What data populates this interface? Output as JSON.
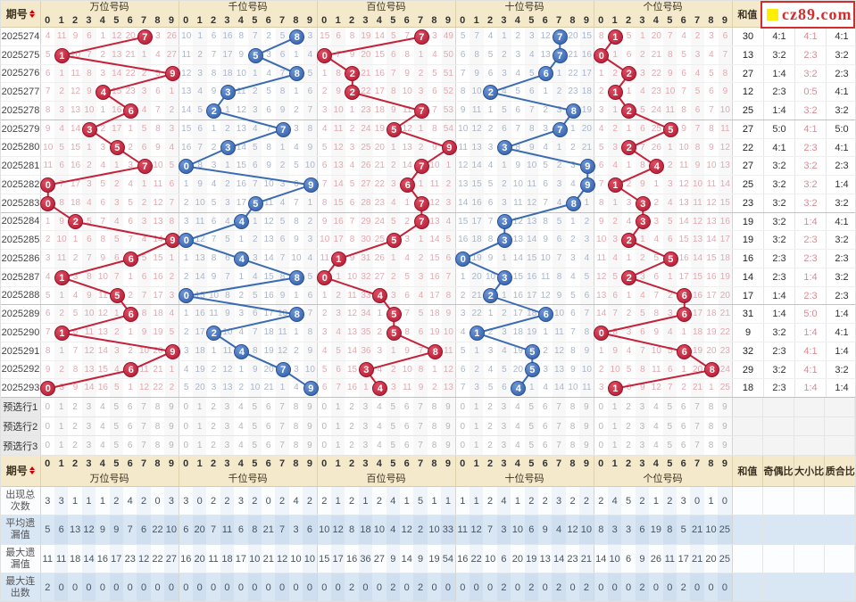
{
  "header": {
    "period_label": "期号",
    "digit_headers": [
      "0",
      "1",
      "2",
      "3",
      "4",
      "5",
      "6",
      "7",
      "8",
      "9"
    ],
    "groups": [
      "万位号码",
      "千位号码",
      "百位号码",
      "十位号码",
      "个位号码"
    ],
    "sum_label": "和值",
    "ratio_labels": [
      "奇偶比",
      "大小比",
      "质合比"
    ],
    "logo_text": "cz89.com"
  },
  "colors": {
    "red_ball": "#b01730",
    "blue_ball": "#2d5ba8",
    "red_line": "#c5223a",
    "blue_line": "#3a6cb4",
    "pink_miss_text": "#e2a9b0",
    "blue_miss_text": "#a9b6cc",
    "header_bg": "#f4e9ca",
    "stats_row_bg": "#d9e7f5",
    "logo_red": "#d42c2c",
    "logo_yellow": "#ffee00"
  },
  "preselect_rows": [
    {
      "label": "预选行1",
      "digits": [
        "0",
        "1",
        "2",
        "3",
        "4",
        "5",
        "6",
        "7",
        "8",
        "9"
      ]
    },
    {
      "label": "预选行2",
      "digits": [
        "0",
        "1",
        "2",
        "3",
        "4",
        "5",
        "6",
        "7",
        "8",
        "9"
      ]
    },
    {
      "label": "预选行3",
      "digits": [
        "0",
        "1",
        "2",
        "3",
        "4",
        "5",
        "6",
        "7",
        "8",
        "9"
      ]
    }
  ],
  "chart_data": {
    "type": "line",
    "description": "5-digit lottery omission trend chart: per position the drawn digit is circled, other cells show periods-since-last-appearance (computed from first_row_miss seeds by +1 per row, reset to 1 after a draw).",
    "digit_axis": [
      "0",
      "1",
      "2",
      "3",
      "4",
      "5",
      "6",
      "7",
      "8",
      "9"
    ],
    "periods": [
      "2025274",
      "2025275",
      "2025276",
      "2025277",
      "2025278",
      "2025279",
      "2025280",
      "2025281",
      "2025282",
      "2025283",
      "2025284",
      "2025285",
      "2025286",
      "2025287",
      "2025288",
      "2025289",
      "2025290",
      "2025291",
      "2025292",
      "2025293"
    ],
    "series": [
      {
        "name": "万位号码",
        "color": "red",
        "drawn": [
          7,
          1,
          9,
          4,
          6,
          3,
          5,
          7,
          0,
          0,
          2,
          9,
          6,
          1,
          5,
          6,
          1,
          9,
          6,
          0
        ],
        "first_row_miss": [
          4,
          11,
          9,
          6,
          1,
          12,
          20,
          0,
          3,
          26
        ]
      },
      {
        "name": "千位号码",
        "color": "blue",
        "drawn": [
          8,
          5,
          8,
          3,
          2,
          7,
          3,
          0,
          9,
          5,
          4,
          0,
          4,
          8,
          0,
          8,
          2,
          4,
          7,
          9
        ],
        "first_row_miss": [
          10,
          1,
          6,
          16,
          8,
          7,
          2,
          5,
          0,
          3
        ]
      },
      {
        "name": "百位号码",
        "color": "red",
        "drawn": [
          7,
          0,
          2,
          2,
          7,
          5,
          9,
          7,
          6,
          7,
          7,
          5,
          1,
          0,
          4,
          5,
          5,
          8,
          3,
          4
        ],
        "first_row_miss": [
          15,
          6,
          8,
          19,
          14,
          5,
          7,
          0,
          3,
          49
        ]
      },
      {
        "name": "十位号码",
        "color": "blue",
        "drawn": [
          7,
          7,
          6,
          2,
          8,
          7,
          3,
          9,
          9,
          8,
          3,
          3,
          0,
          3,
          2,
          6,
          1,
          5,
          5,
          4
        ],
        "first_row_miss": [
          5,
          7,
          4,
          1,
          2,
          3,
          12,
          0,
          20,
          15
        ]
      },
      {
        "name": "个位号码",
        "color": "red",
        "drawn": [
          1,
          0,
          2,
          1,
          2,
          5,
          2,
          4,
          1,
          3,
          3,
          2,
          5,
          2,
          6,
          6,
          0,
          6,
          8,
          1
        ],
        "first_row_miss": [
          8,
          0,
          5,
          1,
          20,
          7,
          4,
          2,
          3,
          6
        ]
      }
    ],
    "sum_values": [
      30,
      13,
      27,
      12,
      25,
      27,
      22,
      27,
      25,
      23,
      19,
      19,
      16,
      14,
      17,
      31,
      9,
      32,
      29,
      18
    ],
    "odd_even_ratio": [
      "4:1",
      "3:2",
      "1:4",
      "2:3",
      "1:4",
      "5:0",
      "4:1",
      "3:2",
      "3:2",
      "3:2",
      "3:2",
      "3:2",
      "2:3",
      "2:3",
      "1:4",
      "1:4",
      "3:2",
      "2:3",
      "3:2",
      "2:3"
    ],
    "big_small_ratio": [
      "4:1",
      "2:3",
      "3:2",
      "0:5",
      "3:2",
      "4:1",
      "2:3",
      "3:2",
      "3:2",
      "3:2",
      "1:4",
      "2:3",
      "2:3",
      "1:4",
      "2:3",
      "5:0",
      "1:4",
      "4:1",
      "4:1",
      "1:4"
    ],
    "prime_composite_ratio": [
      "4:1",
      "3:2",
      "2:3",
      "4:1",
      "3:2",
      "5:0",
      "4:1",
      "2:3",
      "1:4",
      "3:2",
      "4:1",
      "3:2",
      "2:3",
      "3:2",
      "2:3",
      "1:4",
      "4:1",
      "1:4",
      "3:2",
      "1:4"
    ],
    "stats": [
      {
        "label": "出现总次数",
        "per_group": [
          [
            3,
            3,
            1,
            1,
            1,
            2,
            4,
            2,
            0,
            3
          ],
          [
            3,
            0,
            2,
            2,
            3,
            2,
            0,
            2,
            4,
            2
          ],
          [
            2,
            1,
            2,
            1,
            2,
            4,
            1,
            5,
            1,
            1
          ],
          [
            1,
            1,
            2,
            4,
            1,
            2,
            2,
            3,
            2,
            2
          ],
          [
            2,
            4,
            5,
            2,
            1,
            2,
            3,
            0,
            1,
            0
          ]
        ]
      },
      {
        "label": "平均遗漏值",
        "per_group": [
          [
            5,
            6,
            13,
            12,
            9,
            9,
            7,
            6,
            22,
            10
          ],
          [
            6,
            20,
            7,
            11,
            6,
            8,
            21,
            7,
            3,
            6
          ],
          [
            10,
            12,
            8,
            18,
            10,
            4,
            12,
            2,
            10,
            33
          ],
          [
            11,
            12,
            7,
            3,
            10,
            6,
            9,
            4,
            12,
            10
          ],
          [
            8,
            3,
            3,
            6,
            19,
            8,
            5,
            21,
            10,
            25
          ]
        ]
      },
      {
        "label": "最大遗漏值",
        "per_group": [
          [
            11,
            11,
            18,
            14,
            16,
            17,
            23,
            12,
            22,
            27
          ],
          [
            16,
            20,
            11,
            18,
            17,
            10,
            21,
            12,
            10,
            10
          ],
          [
            15,
            17,
            16,
            36,
            27,
            9,
            14,
            9,
            19,
            54
          ],
          [
            16,
            22,
            10,
            6,
            20,
            19,
            13,
            14,
            23,
            21
          ],
          [
            14,
            10,
            6,
            9,
            26,
            11,
            17,
            21,
            20,
            25
          ]
        ]
      },
      {
        "label": "最大连出数",
        "per_group": [
          [
            2,
            0,
            0,
            0,
            0,
            0,
            0,
            0,
            0,
            0
          ],
          [
            0,
            0,
            0,
            0,
            0,
            0,
            0,
            0,
            0,
            0
          ],
          [
            0,
            0,
            2,
            0,
            0,
            2,
            0,
            2,
            0,
            0
          ],
          [
            0,
            0,
            0,
            2,
            0,
            2,
            0,
            2,
            0,
            2
          ],
          [
            0,
            0,
            0,
            2,
            0,
            0,
            2,
            0,
            0,
            0
          ]
        ]
      }
    ]
  }
}
